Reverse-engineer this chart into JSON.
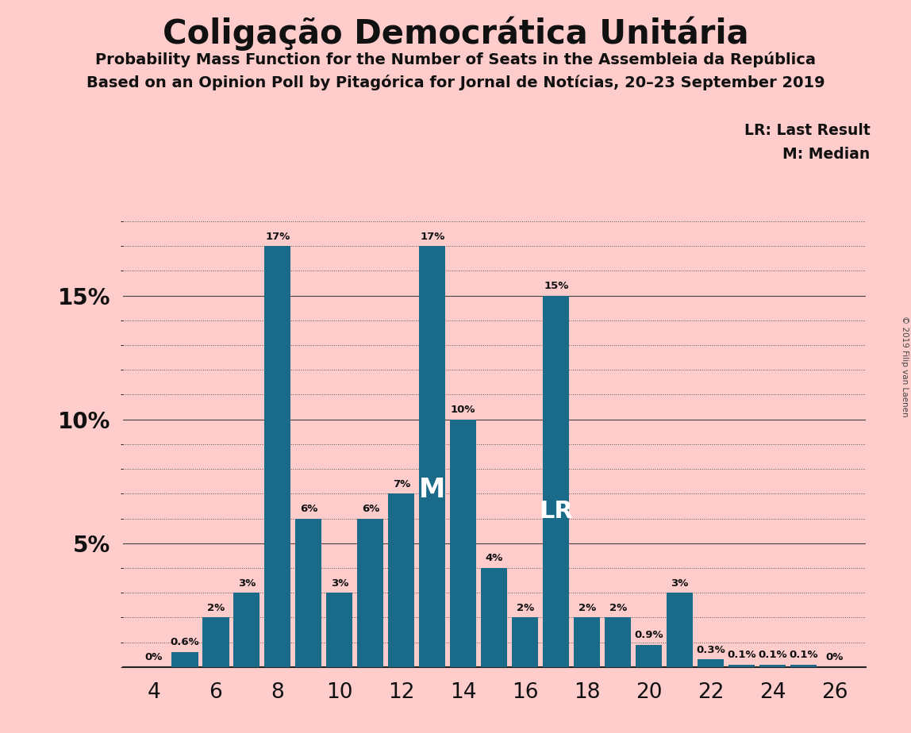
{
  "title": "Coligação Democrática Unitária",
  "subtitle1": "Probability Mass Function for the Number of Seats in the Assembleia da República",
  "subtitle2": "Based on an Opinion Poll by Pitagórica for Jornal de Notícias, 20–23 September 2019",
  "copyright": "© 2019 Filip van Laenen",
  "seats": [
    4,
    5,
    6,
    7,
    8,
    9,
    10,
    11,
    12,
    13,
    14,
    15,
    16,
    17,
    18,
    19,
    20,
    21,
    22,
    23,
    24,
    25,
    26
  ],
  "probabilities": [
    0.0,
    0.6,
    2.0,
    3.0,
    17.0,
    6.0,
    3.0,
    6.0,
    7.0,
    17.0,
    10.0,
    4.0,
    2.0,
    15.0,
    2.0,
    2.0,
    0.9,
    3.0,
    0.3,
    0.1,
    0.1,
    0.1,
    0.0
  ],
  "bar_color": "#1a6b8a",
  "background_color": "#ffcccc",
  "median_seat": 13,
  "last_result_seat": 17,
  "legend_lr": "LR: Last Result",
  "legend_m": "M: Median",
  "copyright_text": "© 2019 Filip van Laenen"
}
